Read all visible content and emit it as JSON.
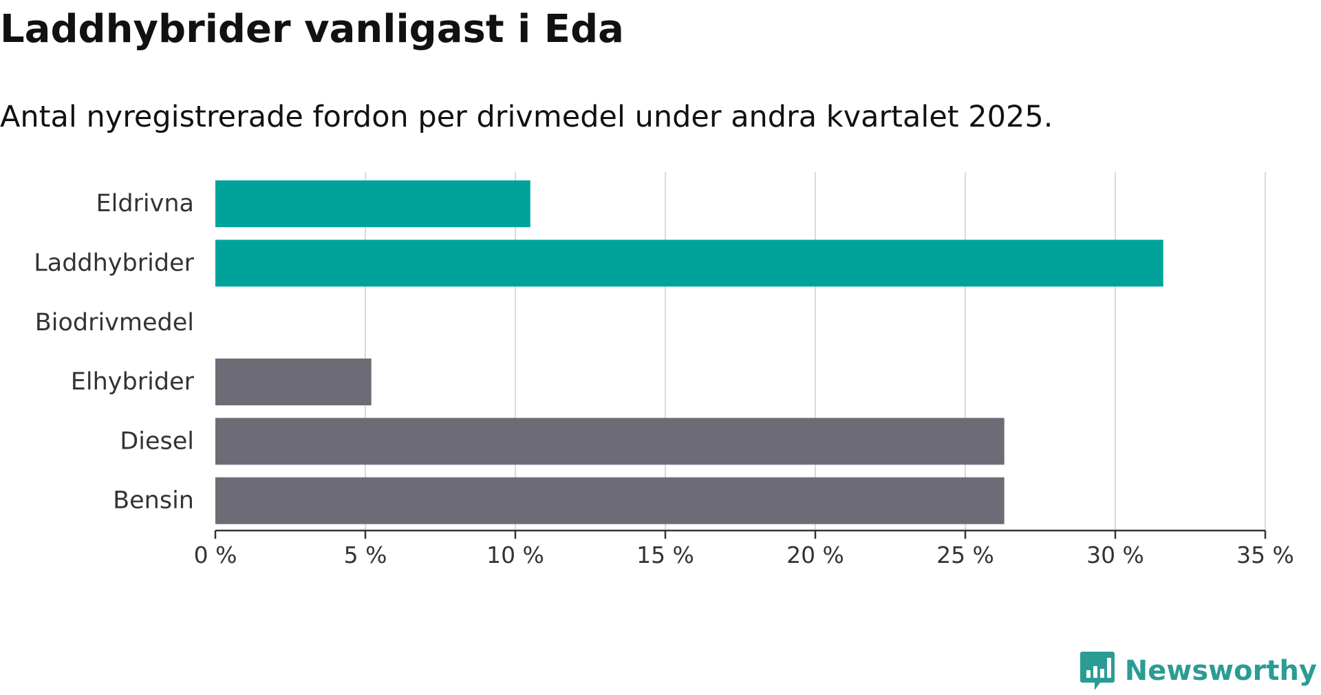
{
  "header": {
    "title": "Laddhybrider vanligast i Eda",
    "subtitle": "Antal nyregistrerade fordon per drivmedel under andra kvartalet 2025."
  },
  "brand": {
    "name": "Newsworthy",
    "icon": "newsworthy-logo-icon",
    "color": "#2b9c94"
  },
  "colors": {
    "highlight": "#00a39a",
    "default": "#6d6c76",
    "grid": "#d9d9d9",
    "axis": "#333333"
  },
  "chart_data": {
    "type": "bar",
    "orientation": "horizontal",
    "categories": [
      "Eldrivna",
      "Laddhybrider",
      "Biodrivmedel",
      "Elhybrider",
      "Diesel",
      "Bensin"
    ],
    "values": [
      10.5,
      31.6,
      0,
      5.2,
      26.3,
      26.3
    ],
    "highlighted": [
      true,
      true,
      true,
      false,
      false,
      false
    ],
    "xlim": [
      0,
      35
    ],
    "xticks": [
      0,
      5,
      10,
      15,
      20,
      25,
      30,
      35
    ],
    "xtick_labels": [
      "0 %",
      "5 %",
      "10 %",
      "15 %",
      "20 %",
      "25 %",
      "30 %",
      "35 %"
    ],
    "grid": true,
    "xlabel": "",
    "ylabel": ""
  }
}
